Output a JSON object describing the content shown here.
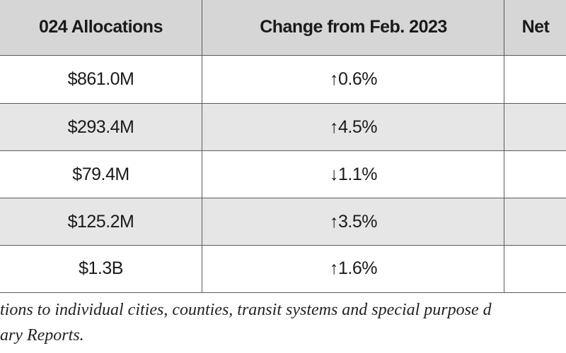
{
  "table": {
    "header": [
      "024 Allocations",
      "Change from Feb. 2023",
      "Net"
    ],
    "rows": [
      [
        "$861.0M",
        "↑0.6%"
      ],
      [
        "$293.4M",
        "↑4.5%"
      ],
      [
        "$79.4M",
        "↓1.1%"
      ],
      [
        "$125.2M",
        "↑3.5%"
      ],
      [
        "$1.3B",
        "↑1.6%"
      ]
    ]
  },
  "footnote": {
    "lines": [
      "tions to individual cities, counties, transit systems and special purpose d",
      "ary Reports."
    ]
  }
}
